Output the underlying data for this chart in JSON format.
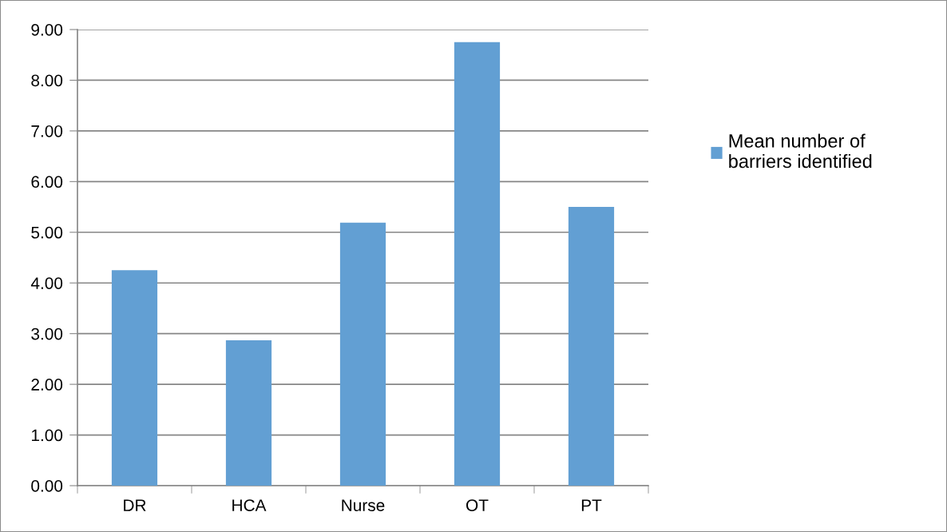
{
  "chart_data": {
    "type": "bar",
    "categories": [
      "DR",
      "HCA",
      "Nurse",
      "OT",
      "PT"
    ],
    "series": [
      {
        "name": "Mean number of\nbarriers identified",
        "color": "#629fd3",
        "values": [
          4.25,
          2.87,
          5.19,
          8.75,
          5.5
        ]
      }
    ],
    "ylim": [
      0,
      9
    ],
    "yticks": [
      {
        "value": 0,
        "label": "0.00"
      },
      {
        "value": 1,
        "label": "1.00"
      },
      {
        "value": 2,
        "label": "2.00"
      },
      {
        "value": 3,
        "label": "3.00"
      },
      {
        "value": 4,
        "label": "4.00"
      },
      {
        "value": 5,
        "label": "5.00"
      },
      {
        "value": 6,
        "label": "6.00"
      },
      {
        "value": 7,
        "label": "7.00"
      },
      {
        "value": 8,
        "label": "8.00"
      },
      {
        "value": 9,
        "label": "9.00"
      }
    ],
    "grid": "y",
    "legend": "right"
  }
}
